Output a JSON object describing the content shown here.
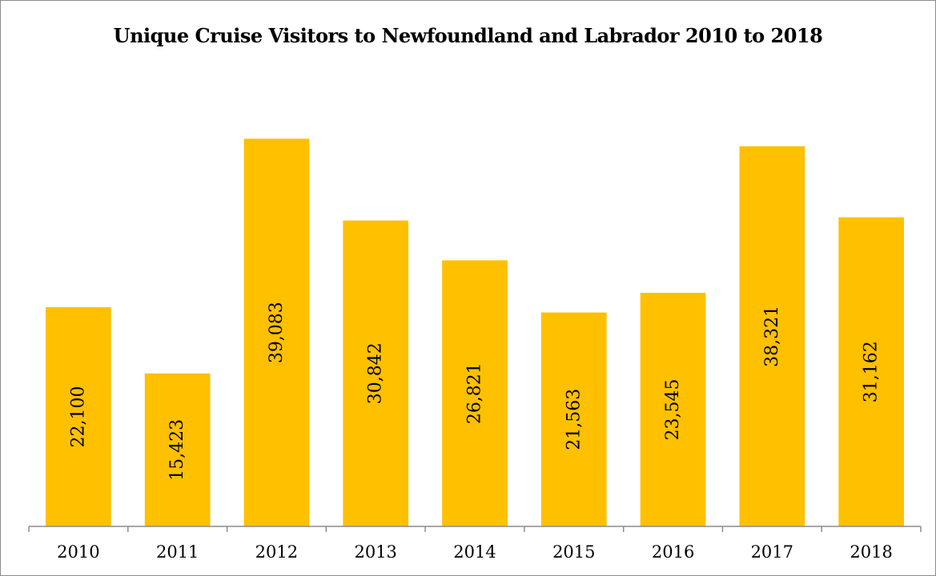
{
  "chart_data": {
    "type": "bar",
    "title": "Unique Cruise Visitors to Newfoundland and Labrador 2010 to 2018",
    "xlabel": "",
    "ylabel": "",
    "categories": [
      "2010",
      "2011",
      "2012",
      "2013",
      "2014",
      "2015",
      "2016",
      "2017",
      "2018"
    ],
    "values": [
      22100,
      15423,
      39083,
      30842,
      26821,
      21563,
      23545,
      38321,
      31162
    ],
    "value_labels": [
      "22,100",
      "15,423",
      "39,083",
      "30,842",
      "26,821",
      "21,563",
      "23,545",
      "38,321",
      "31,162"
    ],
    "ylim": [
      0,
      45000
    ],
    "grid": false,
    "legend": "none",
    "bar_color": "#FFC000",
    "data_label_orientation": "vertical"
  }
}
